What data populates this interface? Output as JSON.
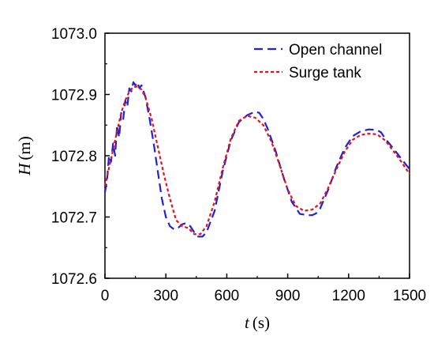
{
  "chart_data": {
    "type": "line",
    "xlabel_var": "t",
    "xlabel_unit": "(s)",
    "ylabel_var": "H",
    "ylabel_unit": "(m)",
    "xlim": [
      0,
      1500
    ],
    "ylim": [
      1072.6,
      1073.0
    ],
    "x_ticks": [
      0,
      300,
      600,
      900,
      1200,
      1500
    ],
    "x_tick_labels": [
      "0",
      "300",
      "600",
      "900",
      "1200",
      "1500"
    ],
    "y_ticks": [
      1072.6,
      1072.7,
      1072.8,
      1072.9,
      1073.0
    ],
    "y_tick_labels": [
      "1072.6",
      "1072.7",
      "1072.8",
      "1072.9",
      "1073.0"
    ],
    "grid": false,
    "legend_position": "top-right",
    "series": [
      {
        "name": "Open channel",
        "color": "#1f22d6",
        "style": "long-dash",
        "x": [
          0,
          10,
          20,
          30,
          40,
          50,
          60,
          70,
          80,
          90,
          100,
          110,
          120,
          130,
          140,
          150,
          160,
          170,
          180,
          190,
          200,
          220,
          240,
          260,
          280,
          300,
          320,
          340,
          360,
          380,
          400,
          420,
          440,
          460,
          480,
          500,
          540,
          580,
          620,
          660,
          700,
          740,
          760,
          780,
          800,
          840,
          880,
          920,
          960,
          1000,
          1020,
          1040,
          1060,
          1100,
          1140,
          1180,
          1220,
          1260,
          1300,
          1340,
          1360,
          1380,
          1420,
          1460,
          1500
        ],
        "y": [
          1072.74,
          1072.76,
          1072.8,
          1072.79,
          1072.82,
          1072.8,
          1072.85,
          1072.83,
          1072.87,
          1072.86,
          1072.89,
          1072.88,
          1072.91,
          1072.905,
          1072.92,
          1072.915,
          1072.92,
          1072.91,
          1072.915,
          1072.905,
          1072.895,
          1072.86,
          1072.82,
          1072.775,
          1072.73,
          1072.7,
          1072.685,
          1072.68,
          1072.682,
          1072.688,
          1072.69,
          1072.685,
          1072.675,
          1072.668,
          1072.668,
          1072.675,
          1072.71,
          1072.775,
          1072.825,
          1072.855,
          1072.866,
          1072.872,
          1072.87,
          1072.86,
          1072.845,
          1072.808,
          1072.764,
          1072.725,
          1072.705,
          1072.703,
          1072.703,
          1072.706,
          1072.714,
          1072.745,
          1072.782,
          1072.812,
          1072.832,
          1072.84,
          1072.843,
          1072.842,
          1072.838,
          1072.828,
          1072.812,
          1072.795,
          1072.778
        ]
      },
      {
        "name": "Surge tank",
        "color": "#e8101e",
        "style": "short-dash",
        "x": [
          0,
          20,
          40,
          60,
          80,
          100,
          120,
          140,
          160,
          180,
          200,
          230,
          260,
          290,
          320,
          350,
          380,
          410,
          440,
          470,
          500,
          540,
          580,
          620,
          660,
          700,
          740,
          780,
          820,
          860,
          900,
          940,
          980,
          1020,
          1060,
          1100,
          1140,
          1180,
          1220,
          1260,
          1300,
          1340,
          1380,
          1420,
          1460,
          1500
        ],
        "y": [
          1072.75,
          1072.78,
          1072.81,
          1072.84,
          1072.87,
          1072.89,
          1072.905,
          1072.912,
          1072.913,
          1072.908,
          1072.895,
          1072.86,
          1072.815,
          1072.77,
          1072.73,
          1072.695,
          1072.685,
          1072.682,
          1072.672,
          1072.672,
          1072.685,
          1072.725,
          1072.78,
          1072.828,
          1072.857,
          1072.865,
          1072.862,
          1072.85,
          1072.823,
          1072.785,
          1072.745,
          1072.718,
          1072.71,
          1072.712,
          1072.722,
          1072.748,
          1072.778,
          1072.806,
          1072.826,
          1072.834,
          1072.836,
          1072.835,
          1072.825,
          1072.808,
          1072.79,
          1072.77
        ]
      }
    ]
  }
}
